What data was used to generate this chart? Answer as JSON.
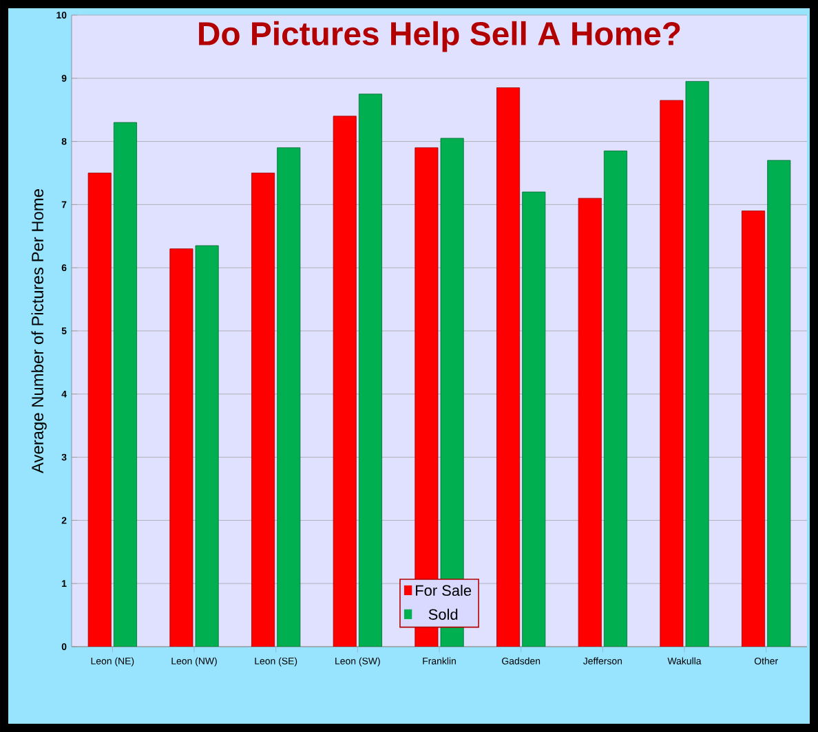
{
  "chart_data": {
    "type": "bar",
    "title": "Do Pictures Help Sell A Home?",
    "ylabel": "Average Number of Pictures Per Home",
    "categories": [
      "Leon (NE)",
      "Leon (NW)",
      "Leon (SE)",
      "Leon (SW)",
      "Franklin",
      "Gadsden",
      "Jefferson",
      "Wakulla",
      "Other"
    ],
    "series": [
      {
        "name": "For Sale",
        "color": "#ff0000",
        "values": [
          7.5,
          6.3,
          7.5,
          8.4,
          7.9,
          8.85,
          7.1,
          8.65,
          6.9
        ]
      },
      {
        "name": "Sold",
        "color": "#00b050",
        "values": [
          8.3,
          6.35,
          7.9,
          8.75,
          8.05,
          7.2,
          7.85,
          8.95,
          7.7
        ]
      }
    ],
    "ylim": [
      0,
      10
    ],
    "yticks": [
      0,
      1,
      2,
      3,
      4,
      5,
      6,
      7,
      8,
      9,
      10
    ],
    "grid": "y",
    "legend": "bottom"
  }
}
